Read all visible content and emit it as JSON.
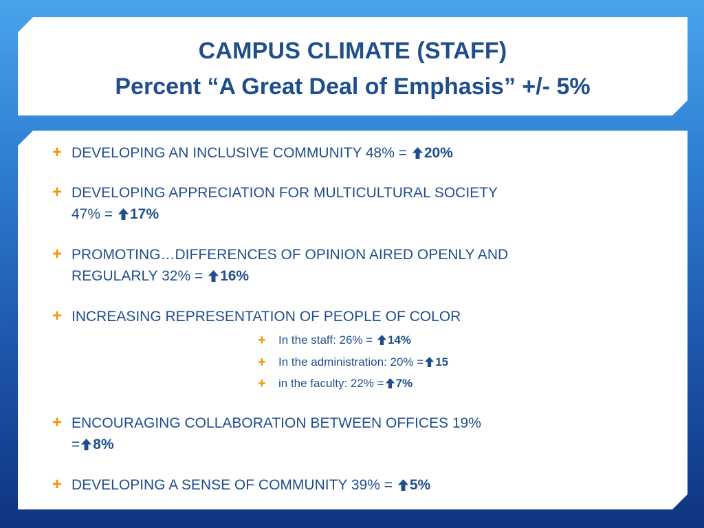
{
  "slide": {
    "title_line1": "CAMPUS CLIMATE (STAFF)",
    "title_line2": "Percent “A Great Deal of Emphasis” +/- 5%"
  },
  "bullets": [
    {
      "text": "DEVELOPING AN INCLUSIVE COMMUNITY 48% = ",
      "delta": "20%"
    },
    {
      "text": "DEVELOPING APPRECIATION FOR MULTICULTURAL SOCIETY",
      "text2": "47%  = ",
      "delta": "17%"
    },
    {
      "text": "PROMOTING…DIFFERENCES OF OPINION AIRED OPENLY AND",
      "text2": "REGULARLY 32% = ",
      "delta": "16%"
    },
    {
      "text": "INCREASING REPRESENTATION OF PEOPLE OF COLOR"
    },
    {
      "text": "ENCOURAGING COLLABORATION BETWEEN OFFICES 19%",
      "text2": "=",
      "delta": "8%"
    },
    {
      "text": "DEVELOPING A SENSE OF COMMUNITY 39% = ",
      "delta": "5%"
    }
  ],
  "sub_bullets": [
    {
      "text": "In the staff:  26% = ",
      "delta": "14%"
    },
    {
      "text": "In the administration: 20%  =",
      "delta": "15"
    },
    {
      "text": "in the faculty: 22%  =",
      "delta": "7%"
    }
  ],
  "icons": {
    "bullet": "plus-icon",
    "increase": "up-arrow-icon"
  },
  "colors": {
    "title": "#1f4e8c",
    "text": "#1f4e8c",
    "bullet": "#f29400",
    "arrow": "#1f4e8c"
  }
}
